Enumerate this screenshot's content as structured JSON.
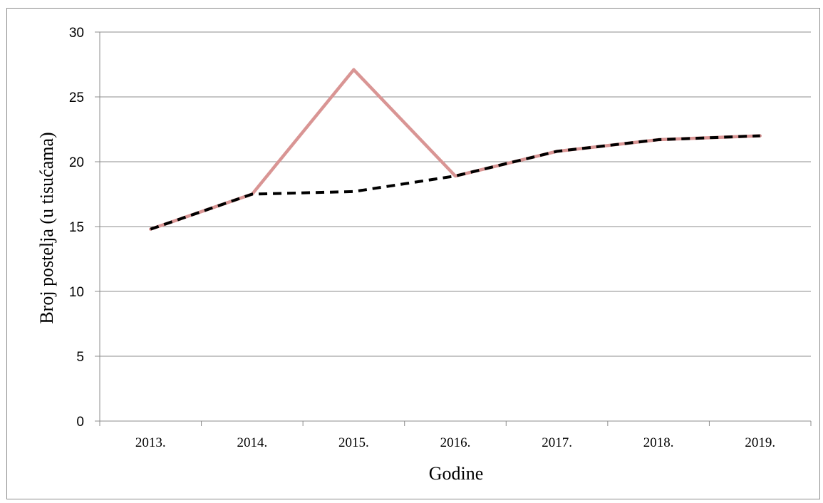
{
  "chart_data": {
    "type": "line",
    "title": "",
    "xlabel": "Godine",
    "ylabel": "Broj postelja (u tisućama)",
    "categories": [
      "2013.",
      "2014.",
      "2015.",
      "2016.",
      "2017.",
      "2018.",
      "2019."
    ],
    "ylim": [
      0,
      30
    ],
    "yticks": [
      0,
      5,
      10,
      15,
      20,
      25,
      30
    ],
    "grid": true,
    "legend": "none",
    "series": [
      {
        "color": "#d99594",
        "style": "solid",
        "values": [
          14.8,
          17.5,
          27.1,
          18.9,
          20.8,
          21.7,
          22.0
        ]
      },
      {
        "color": "#000000",
        "style": "dashed",
        "values": [
          14.8,
          17.5,
          17.7,
          18.9,
          20.8,
          21.7,
          22.0
        ]
      }
    ]
  }
}
